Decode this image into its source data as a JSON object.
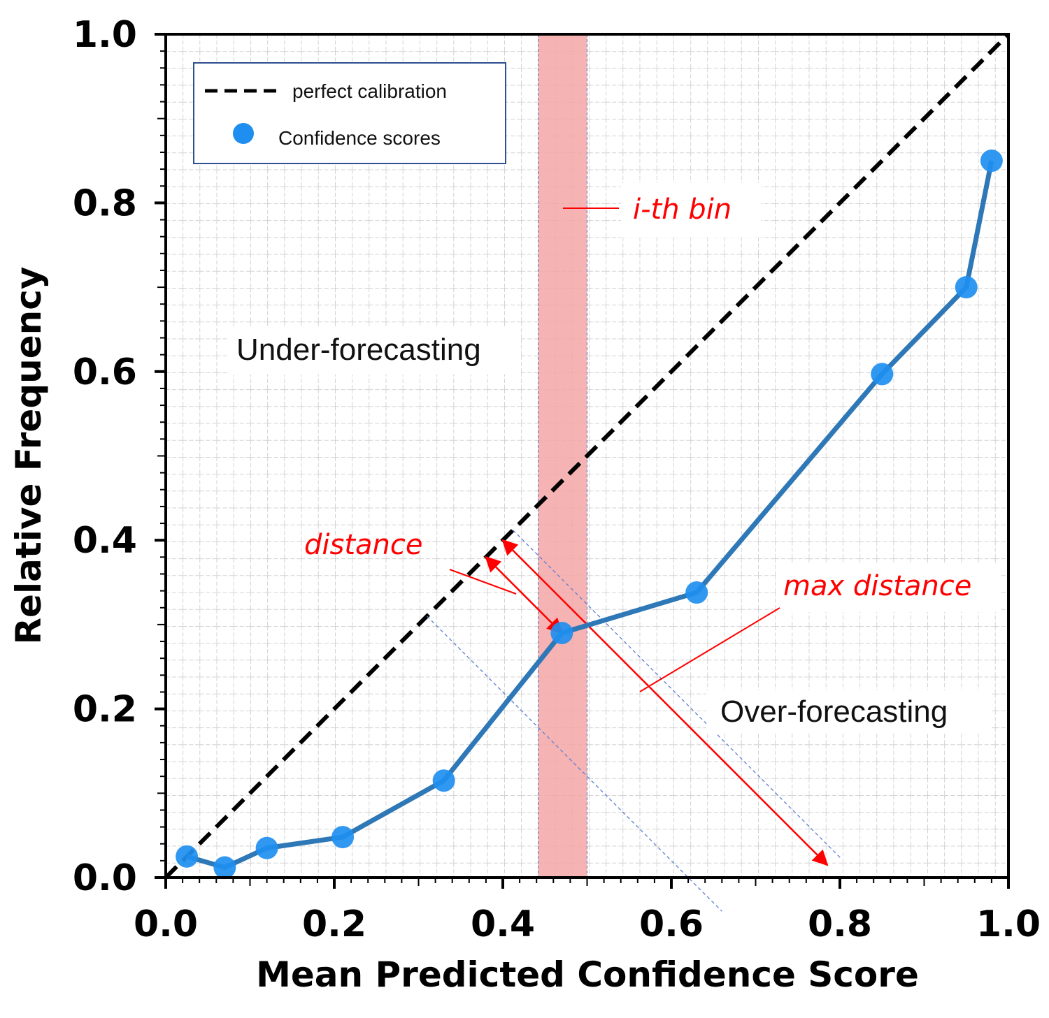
{
  "chart_data": {
    "type": "line",
    "xlabel": "Mean Predicted Confidence Score",
    "ylabel": "Relative Frequency",
    "xlim": [
      0,
      1
    ],
    "ylim": [
      0,
      1
    ],
    "x_ticks": [
      "0.0",
      "0.2",
      "0.4",
      "0.6",
      "0.8",
      "1.0"
    ],
    "y_ticks": [
      "0.0",
      "0.2",
      "0.4",
      "0.6",
      "0.8",
      "1.0"
    ],
    "grid": true,
    "legend": {
      "placement": "top-left",
      "entries": [
        {
          "label": "perfect calibration",
          "style": "dashed-line"
        },
        {
          "label": "Confidence scores",
          "style": "marker"
        }
      ]
    },
    "reference_line": {
      "label": "perfect calibration",
      "x": [
        0,
        1
      ],
      "y": [
        0,
        1
      ],
      "color": "#000000"
    },
    "series": [
      {
        "name": "Confidence scores",
        "x": [
          0.025,
          0.07,
          0.12,
          0.21,
          0.33,
          0.47,
          0.63,
          0.85,
          0.95,
          0.98
        ],
        "y": [
          0.025,
          0.012,
          0.035,
          0.048,
          0.115,
          0.29,
          0.338,
          0.597,
          0.7,
          0.85
        ],
        "line_color": "#2e78b7",
        "marker_color": "#1e8ff0"
      }
    ],
    "highlight_bin": {
      "label": "i-th bin",
      "x_range": [
        0.442,
        0.5
      ],
      "color": "#f4a6a6"
    },
    "annotations": [
      {
        "text": "Under-forecasting",
        "color": "#111111"
      },
      {
        "text": "Over-forecasting",
        "color": "#111111"
      },
      {
        "text": "distance",
        "color": "#ff0000"
      },
      {
        "text": "max distance",
        "color": "#ff0000"
      },
      {
        "text": "i-th bin",
        "color": "#ff0000"
      }
    ]
  }
}
